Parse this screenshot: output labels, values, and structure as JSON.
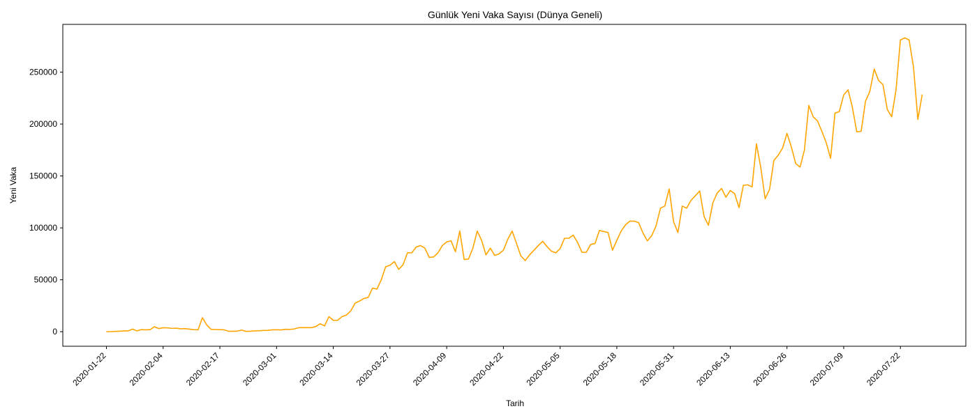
{
  "chart_data": {
    "type": "line",
    "title": "Günlük Yeni Vaka Sayısı (Dünya Geneli)",
    "xlabel": "Tarih",
    "ylabel": "Yeni Vaka",
    "x_start": "2020-01-22",
    "x_ticks": [
      "2020-01-22",
      "2020-02-04",
      "2020-02-17",
      "2020-03-01",
      "2020-03-14",
      "2020-03-27",
      "2020-04-09",
      "2020-04-22",
      "2020-05-05",
      "2020-05-18",
      "2020-05-31",
      "2020-06-13",
      "2020-06-26",
      "2020-07-09",
      "2020-07-22"
    ],
    "y_ticks": [
      0,
      50000,
      100000,
      150000,
      200000,
      250000
    ],
    "ylim": [
      -14000,
      296000
    ],
    "grid": false,
    "line_color": "#FFA500",
    "series": [
      {
        "values": [
          0,
          100,
          300,
          500,
          700,
          800,
          2500,
          800,
          2000,
          1800,
          2000,
          4800,
          3000,
          3800,
          3700,
          3200,
          3400,
          2800,
          3000,
          2500,
          2000,
          1800,
          13500,
          6500,
          2200,
          2100,
          2000,
          1800,
          400,
          500,
          500,
          1600,
          300,
          500,
          800,
          900,
          1200,
          1300,
          1800,
          1900,
          1700,
          2300,
          2200,
          2600,
          3800,
          4000,
          3900,
          3900,
          5000,
          7700,
          5600,
          14500,
          11000,
          11000,
          14500,
          16000,
          20000,
          27500,
          29500,
          32000,
          33000,
          42000,
          41000,
          50000,
          62500,
          64000,
          67500,
          60000,
          64500,
          76000,
          76000,
          81500,
          83000,
          80500,
          71500,
          72000,
          76000,
          83000,
          86500,
          87500,
          77000,
          97000,
          69500,
          70000,
          80500,
          97000,
          88000,
          74000,
          80500,
          73500,
          75000,
          78500,
          89000,
          97000,
          85000,
          73000,
          68500,
          74000,
          78500,
          83000,
          87000,
          82000,
          77500,
          76000,
          80000,
          90000,
          90000,
          93000,
          86000,
          76500,
          76500,
          84000,
          85000,
          97500,
          96500,
          95500,
          78500,
          88000,
          97000,
          103000,
          106500,
          106500,
          105000,
          95000,
          87500,
          92500,
          102000,
          119000,
          121000,
          137500,
          106000,
          95500,
          121000,
          119000,
          126500,
          131000,
          135500,
          111000,
          102500,
          124000,
          133500,
          138000,
          129500,
          136000,
          133000,
          119500,
          141000,
          141500,
          139500,
          181000,
          158000,
          128000,
          137000,
          165000,
          170000,
          177000,
          191000,
          178000,
          162000,
          158500,
          175000,
          218000,
          207000,
          203000,
          193000,
          182000,
          167000,
          210500,
          212000,
          228000,
          233000,
          216000,
          192500,
          193000,
          222000,
          231500,
          253000,
          242000,
          238000,
          214000,
          207000,
          233000,
          281000,
          283000,
          281000,
          255000,
          204500,
          228500
        ]
      }
    ]
  }
}
